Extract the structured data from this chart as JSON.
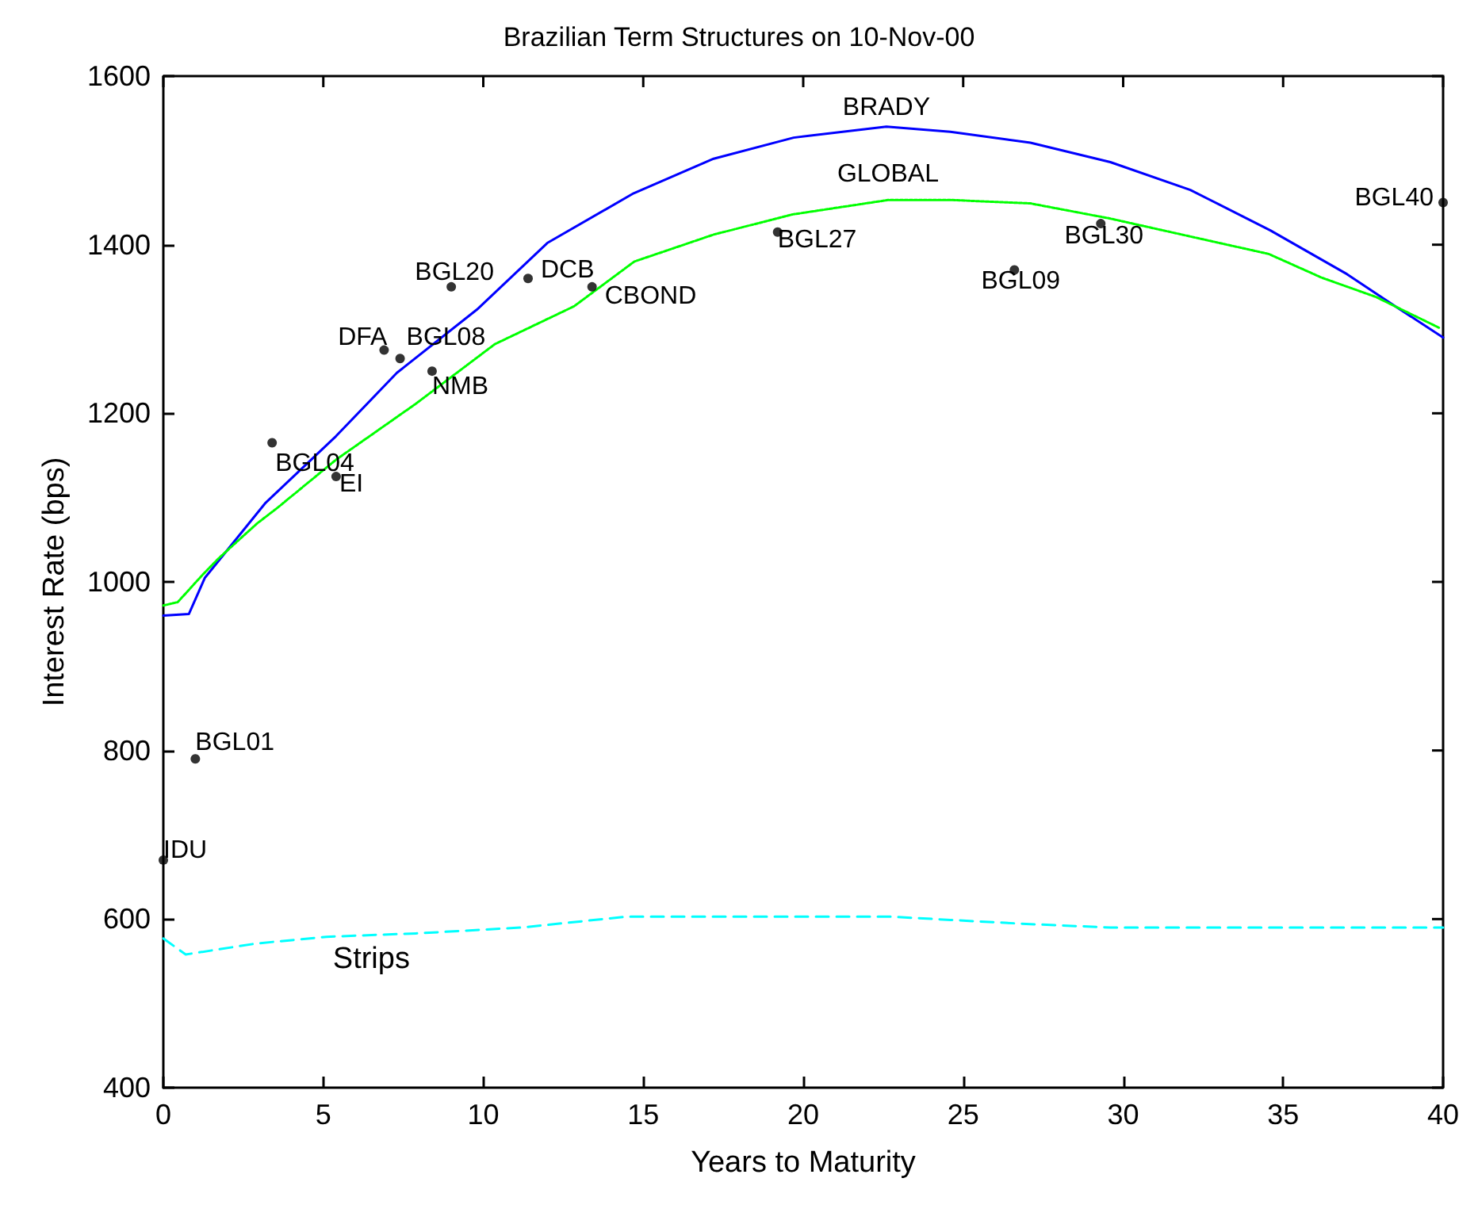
{
  "chart_data": {
    "type": "line",
    "title": "Brazilian Term Structures on 10-Nov-00",
    "xlabel": "Years to Maturity",
    "ylabel": "Interest Rate (bps)",
    "xlim": [
      0,
      40
    ],
    "xticks": [
      0,
      5,
      10,
      15,
      20,
      25,
      30,
      35,
      40
    ],
    "ylim": [
      400,
      1600
    ],
    "yticks": [
      400,
      600,
      800,
      1000,
      1200,
      1400,
      1600
    ],
    "grid": false,
    "legend": false,
    "series": [
      {
        "name": "BRADY",
        "color": "#0000ff",
        "line_style": "solid",
        "marker": "none",
        "x": [
          0,
          0.8,
          1.3,
          3.2,
          5.4,
          7.3,
          9.8,
          12,
          14.7,
          17.2,
          19.7,
          22.6,
          24.6,
          27.1,
          29.6,
          32.1,
          34.6,
          37,
          38.5,
          40
        ],
        "values": [
          960,
          962,
          1005,
          1094,
          1173,
          1248,
          1323,
          1402,
          1461,
          1502,
          1527,
          1540,
          1534,
          1521,
          1498,
          1465,
          1417,
          1365,
          1327,
          1290
        ]
      },
      {
        "name": "GLOBAL",
        "color": "#00ff00",
        "line_style": "dotted",
        "marker": "none",
        "x": [
          0,
          0.45,
          1.24,
          1.73,
          2.92,
          3.57,
          5.4,
          7.88,
          10.36,
          12.84,
          14.72,
          17.2,
          19.68,
          22.65,
          24.63,
          27.1,
          29.6,
          32.07,
          34.55,
          36.2,
          37.9,
          39.9
        ],
        "values": [
          972,
          976,
          1009,
          1028,
          1069,
          1088,
          1145,
          1211,
          1282,
          1327,
          1380,
          1412,
          1436,
          1453,
          1453,
          1449,
          1431,
          1410,
          1389,
          1361,
          1338,
          1301
        ]
      },
      {
        "name": "Strips",
        "color": "#00ffff",
        "line_style": "dashed",
        "marker": "none",
        "x": [
          0,
          0.7,
          2.9,
          5.1,
          7.9,
          11.2,
          14.5,
          22.65,
          24.6,
          27.1,
          29.6,
          40
        ],
        "values": [
          577,
          558,
          571,
          579,
          583,
          590,
          603,
          603,
          599,
          594,
          590,
          590
        ]
      },
      {
        "type": "scatter",
        "color": "#000000",
        "marker": "circle",
        "x": [
          0,
          1,
          3.4,
          5.4,
          6.9,
          7.4,
          8.4,
          9,
          11.4,
          13.4,
          19.2,
          26.6,
          29.3,
          40
        ],
        "values": [
          670,
          790,
          1165,
          1125,
          1275,
          1265,
          1250,
          1350,
          1360,
          1350,
          1415,
          1370,
          1425,
          1450
        ]
      }
    ],
    "annotations": [
      {
        "text": "IDU",
        "x": 0,
        "y": 670
      },
      {
        "text": "BGL01",
        "x": 1,
        "y": 790
      },
      {
        "text": "BGL04",
        "x": 3.4,
        "y": 1165
      },
      {
        "text": "EI",
        "x": 5.4,
        "y": 1125
      },
      {
        "text": "DFA",
        "x": 6.9,
        "y": 1275
      },
      {
        "text": "BGL08",
        "x": 7.4,
        "y": 1265
      },
      {
        "text": "NMB",
        "x": 8.4,
        "y": 1250
      },
      {
        "text": "BGL20",
        "x": 9,
        "y": 1350
      },
      {
        "text": "DCB",
        "x": 11.4,
        "y": 1360
      },
      {
        "text": "CBOND",
        "x": 13.4,
        "y": 1350
      },
      {
        "text": "BGL27",
        "x": 19.2,
        "y": 1415
      },
      {
        "text": "BGL09",
        "x": 26.6,
        "y": 1370
      },
      {
        "text": "BGL30",
        "x": 29.3,
        "y": 1425
      },
      {
        "text": "BGL40",
        "x": 40,
        "y": 1450
      }
    ]
  }
}
